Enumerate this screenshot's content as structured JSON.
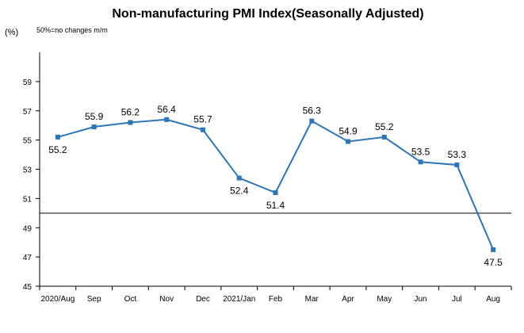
{
  "chart_data": {
    "type": "line",
    "title": "Non-manufacturing PMI Index(Seasonally Adjusted)",
    "unit_label": "(%)",
    "note": "50%=no changes  m/m",
    "categories": [
      "2020/Aug",
      "Sep",
      "Oct",
      "Nov",
      "Dec",
      "2021/Jan",
      "Feb",
      "Mar",
      "Apr",
      "May",
      "Jun",
      "Jul",
      "Aug"
    ],
    "values": [
      55.2,
      55.9,
      56.2,
      56.4,
      55.7,
      52.4,
      51.4,
      56.3,
      54.9,
      55.2,
      53.5,
      53.3,
      47.5
    ],
    "ylim": [
      45,
      61
    ],
    "yticks": [
      45,
      47,
      49,
      51,
      53,
      55,
      57,
      59
    ],
    "baseline": 50,
    "label_positions": [
      "below",
      "above",
      "above",
      "above",
      "above",
      "below",
      "below",
      "above",
      "above",
      "above",
      "above",
      "above",
      "below"
    ],
    "line_color": "#2E75B6",
    "grid": false
  }
}
